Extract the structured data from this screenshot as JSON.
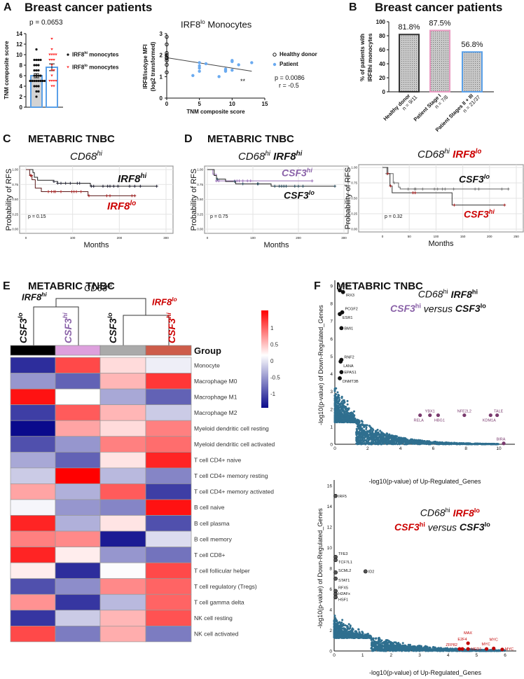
{
  "panels": {
    "A": {
      "letter": "A",
      "title": "Breast cancer patients",
      "pvalue": "p = 0.0653",
      "legend": [
        {
          "base": "IRF8",
          "sup": "hi",
          "rest": " monocytes"
        },
        {
          "base": "IRF8",
          "sup": "lo",
          "rest": " monocytes"
        }
      ],
      "scatter_title": {
        "base": "IRF8",
        "sup": "lo",
        "rest": " Monocytes"
      },
      "scatter_legend": [
        "Healthy donor",
        "Patient"
      ],
      "scatter_p": "p = 0.0086",
      "scatter_r": "r = -0.5",
      "stars": "**"
    },
    "B": {
      "letter": "B",
      "title": "Breast cancer patients"
    },
    "C": {
      "letter": "C",
      "title": "METABRIC TNBC",
      "subtitle": {
        "base": "CD68",
        "sup": "hi"
      },
      "p": "p = 0.15",
      "lab_hi": {
        "base": "IRF8",
        "sup": "hi"
      },
      "lab_lo": {
        "base": "IRF8",
        "sup": "lo"
      }
    },
    "D": {
      "letter": "D",
      "title": "METABRIC TNBC",
      "left_subtitle": {
        "a": "CD68",
        "asup": "hi",
        "b": "IRF8",
        "bsup": "hi"
      },
      "left_p": "p = 0.75",
      "right_subtitle": {
        "a": "CD68",
        "asup": "hi",
        "b": "IRF8",
        "bsup": "lo"
      },
      "right_p": "p = 0.32",
      "csf3hi": {
        "base": "CSF3",
        "sup": "hi"
      },
      "csf3lo": {
        "base": "CSF3",
        "sup": "lo"
      }
    },
    "E": {
      "letter": "E",
      "title": "METABRIC TNBC",
      "cd68": {
        "base": "CD68",
        "sup": "hi"
      },
      "irf8hi": {
        "base": "IRF8",
        "sup": "hi"
      },
      "irf8lo": {
        "base": "IRF8",
        "sup": "lo"
      },
      "group": "Group"
    },
    "F": {
      "letter": "F",
      "title": "METABRIC TNBC",
      "top_title": {
        "a": "CD68",
        "asup": "hi",
        "b": "IRF8",
        "bsup": "hi",
        "c": "CSF3",
        "csup": "hi",
        "vs": " versus ",
        "d": "CSF3",
        "dsup": "lo"
      },
      "bottom_title": {
        "a": "CD68",
        "asup": "hi",
        "b": "IRF8",
        "bsup": "lo",
        "c": "CSF3",
        "csup": "hi",
        "vs": " versus ",
        "d": "CSF3",
        "dsup": "lo"
      }
    }
  },
  "colors": {
    "red": "#cc0000",
    "purple": "#8a62a8",
    "blue": "#5aa0e8",
    "pink": "#e89ac0",
    "cloud": "#2f6f8f"
  },
  "chart_data": [
    {
      "id": "A_bar",
      "type": "bar",
      "ylabel": "TNM composite score",
      "ylim": [
        0,
        14
      ],
      "yticks": [
        0,
        2,
        4,
        6,
        8,
        10,
        12,
        14
      ],
      "series": [
        {
          "name": "IRF8hi monocytes",
          "mean": 6.0,
          "sem": 0.4,
          "points": [
            11,
            9,
            9,
            9,
            9,
            8,
            8,
            8,
            7,
            7,
            7,
            6,
            6,
            6,
            6,
            5,
            5,
            5,
            5,
            5,
            5,
            5,
            5,
            4,
            4,
            4,
            3,
            3,
            2
          ]
        },
        {
          "name": "IRF8lo monocytes",
          "mean": 7.6,
          "sem": 0.65,
          "points": [
            13,
            11,
            10,
            10,
            10,
            10,
            9,
            9,
            9,
            8,
            7,
            7,
            6,
            5,
            5,
            5,
            5,
            4,
            4
          ]
        }
      ]
    },
    {
      "id": "A_scatter",
      "type": "scatter",
      "xlabel": "TNM composite score",
      "ylabel": "IRF8/isotype MFI",
      "ylabel2": "(log2 transformed)",
      "xlim": [
        0,
        15
      ],
      "ylim": [
        0,
        3
      ],
      "xticks": [
        0,
        5,
        10,
        15
      ],
      "yticks": [
        0,
        1,
        2,
        3
      ],
      "healthy": [
        [
          0,
          2.85
        ],
        [
          0,
          2.5
        ],
        [
          0,
          2.1
        ],
        [
          0,
          2.0
        ],
        [
          0,
          1.9
        ],
        [
          0,
          1.85
        ],
        [
          0,
          1.75
        ],
        [
          0,
          1.55
        ],
        [
          0,
          1.2
        ]
      ],
      "patient": [
        [
          4,
          1.05
        ],
        [
          5,
          1.65
        ],
        [
          5,
          1.5
        ],
        [
          5,
          1.4
        ],
        [
          5,
          1.25
        ],
        [
          6,
          1.6
        ],
        [
          8,
          1.0
        ],
        [
          9,
          1.35
        ],
        [
          9,
          1.3
        ],
        [
          9,
          1.25
        ],
        [
          10,
          1.75
        ],
        [
          10,
          1.7
        ],
        [
          10,
          1.3
        ],
        [
          11,
          1.55
        ],
        [
          13,
          1.65
        ]
      ],
      "fit": [
        [
          0,
          1.88
        ],
        [
          13,
          1.25
        ]
      ]
    },
    {
      "id": "B_bar",
      "type": "bar",
      "ylabel": "% of patients with",
      "ylabel2": "IRF8hi monocytes",
      "ylim": [
        0,
        100
      ],
      "yticks": [
        0,
        20,
        40,
        60,
        80,
        100
      ],
      "categories": [
        "Healthy donor",
        "Patient Stage I",
        "Patient Stages II + III"
      ],
      "n": [
        "n = 9/11",
        "n = 7/8",
        "n = 21/37"
      ],
      "values": [
        81.8,
        87.5,
        56.8
      ],
      "labels": [
        "81.8%",
        "87.5%",
        "56.8%"
      ]
    },
    {
      "id": "C_km",
      "type": "line",
      "xlabel": "Months",
      "ylabel": "Probability of RFS",
      "xlim": [
        0,
        300
      ],
      "xticks": [
        "0",
        "100",
        "200",
        "300"
      ],
      "yticks": [
        "0.00",
        "0.25",
        "0.50",
        "0.75",
        "1.00"
      ],
      "series": [
        {
          "name": "IRF8hi",
          "steps": [
            [
              0,
              1
            ],
            [
              15,
              0.95
            ],
            [
              18,
              0.87
            ],
            [
              25,
              0.82
            ],
            [
              60,
              0.8
            ],
            [
              68,
              0.77
            ],
            [
              138,
              0.72
            ]
          ],
          "end": 280,
          "censor": [
            60,
            68,
            75,
            85,
            95,
            110,
            115,
            140,
            145,
            165,
            175,
            180,
            188,
            197,
            222,
            233,
            245,
            280
          ]
        },
        {
          "name": "IRF8lo",
          "steps": [
            [
              0,
              1
            ],
            [
              8,
              0.9
            ],
            [
              13,
              0.83
            ],
            [
              20,
              0.69
            ],
            [
              33,
              0.63
            ],
            [
              133,
              0.56
            ]
          ],
          "end": 235,
          "censor": [
            10,
            12,
            48,
            55,
            60,
            63,
            75,
            98,
            103,
            108,
            118,
            135,
            173,
            180,
            227,
            233
          ]
        }
      ]
    },
    {
      "id": "D_left_km",
      "type": "line",
      "xlabel": "Months",
      "ylabel": "Probability of RFS",
      "xlim": [
        0,
        300
      ],
      "xticks": [
        "0",
        "100",
        "200",
        "300"
      ],
      "yticks": [
        "0.00",
        "0.25",
        "0.50",
        "0.75",
        "1.00"
      ],
      "series": [
        {
          "name": "CSF3hi",
          "steps": [
            [
              0,
              1
            ],
            [
              12,
              0.92
            ],
            [
              20,
              0.81
            ]
          ],
          "end": 230,
          "censor": [
            20,
            25,
            60,
            65,
            70,
            78,
            88,
            95,
            230
          ]
        },
        {
          "name": "CSF3lo",
          "steps": [
            [
              0,
              1
            ],
            [
              15,
              0.9
            ],
            [
              20,
              0.84
            ],
            [
              40,
              0.8
            ],
            [
              62,
              0.76
            ],
            [
              140,
              0.72
            ]
          ],
          "end": 280,
          "censor": [
            22,
            60,
            78,
            110,
            112,
            148,
            158,
            163,
            168,
            173,
            192,
            200,
            210,
            280
          ]
        }
      ]
    },
    {
      "id": "D_right_km",
      "type": "line",
      "xlabel": "Months",
      "ylabel": "Probability of RFS",
      "xlim": [
        0,
        250
      ],
      "xticks": [
        "0",
        "50",
        "100",
        "150",
        "200",
        "250"
      ],
      "yticks": [
        "0.00",
        "0.25",
        "0.50",
        "0.75",
        "1.00"
      ],
      "series": [
        {
          "name": "CSF3lo",
          "steps": [
            [
              0,
              1
            ],
            [
              8,
              0.9
            ],
            [
              20,
              0.75
            ],
            [
              30,
              0.68
            ],
            [
              33,
              0.65
            ]
          ],
          "end": 235,
          "censor": [
            8,
            22,
            48,
            60,
            62,
            75,
            97,
            103,
            112,
            117,
            133,
            173,
            180,
            223,
            235
          ]
        },
        {
          "name": "CSF3hi",
          "steps": [
            [
              0,
              1
            ],
            [
              10,
              0.9
            ],
            [
              14,
              0.7
            ],
            [
              18,
              0.59
            ],
            [
              130,
              0.39
            ]
          ],
          "end": 228,
          "censor": [
            10,
            15,
            57,
            61,
            134,
            228
          ]
        }
      ]
    },
    {
      "id": "E_heatmap",
      "type": "heatmap",
      "columns": [
        {
          "base": "CSF3",
          "sup": "lo"
        },
        {
          "base": "CSF3",
          "sup": "hi"
        },
        {
          "base": "CSF3",
          "sup": "lo"
        },
        {
          "base": "CSF3",
          "sup": "hi"
        }
      ],
      "group_colors": [
        "#000000",
        "#dda0dd",
        "#aaaaaa",
        "#cd5c4a"
      ],
      "scale_ticks": [
        "1",
        "0.5",
        "0",
        "-0.5",
        "-1"
      ],
      "scale_values": [
        1,
        0.5,
        0,
        -0.5,
        -1
      ],
      "rows": [
        "Monocyte",
        "Macrophage M0",
        "Macrophage M1",
        "Macrophage M2",
        "Myeloid dendritic cell resting",
        "Myeloid dendritic cell activated",
        "T cell CD4+ naive",
        "T cell CD4+ memory resting",
        "T cell CD4+ memory activated",
        "B cell naive",
        "B cell plasma",
        "B cell memory",
        "T cell CD8+",
        "T cell follicular helper",
        "T cell regulatory (Tregs)",
        "T cell gamma delta",
        "NK cell resting",
        "NK cell activated"
      ],
      "values": [
        [
          -1.2,
          1.0,
          0.2,
          -0.1
        ],
        [
          -0.6,
          -0.9,
          0.4,
          1.1
        ],
        [
          1.3,
          0,
          -0.5,
          -0.9
        ],
        [
          -1.1,
          0.9,
          0.4,
          -0.3
        ],
        [
          -1.4,
          0.5,
          0.2,
          0.7
        ],
        [
          -1.0,
          -0.6,
          0.7,
          0.8
        ],
        [
          -0.5,
          -0.9,
          0.15,
          1.2
        ],
        [
          -0.3,
          1.4,
          -0.4,
          -0.7
        ],
        [
          0.5,
          -0.45,
          0.9,
          -1.1
        ],
        [
          -0.05,
          -0.6,
          -0.7,
          1.3
        ],
        [
          1.2,
          -0.45,
          0.15,
          -1.0
        ],
        [
          0.7,
          0.65,
          -1.3,
          -0.2
        ],
        [
          1.2,
          0.1,
          -0.6,
          -0.8
        ],
        [
          0.1,
          -1.2,
          -0.02,
          1.0
        ],
        [
          -1.0,
          -0.65,
          0.65,
          0.85
        ],
        [
          0.6,
          -1.15,
          -0.4,
          0.85
        ],
        [
          -1.15,
          -0.3,
          0.4,
          0.95
        ],
        [
          1.0,
          -0.75,
          0.45,
          -0.75
        ]
      ]
    },
    {
      "id": "F_top_volcano",
      "type": "scatter",
      "xlabel": "-log10(p-value) of Up-Regulated_Genes",
      "ylabel": "-log10(p-value) of Down-Regulated_Genes",
      "xlim": [
        0,
        10
      ],
      "ylim": [
        0,
        9
      ],
      "xticks": [
        0,
        2,
        4,
        6,
        8,
        10
      ],
      "yticks": [
        0,
        1,
        2,
        3,
        4,
        5,
        6,
        7,
        8,
        9
      ],
      "down": [
        {
          "gene": "SUZ12",
          "x": 0.3,
          "y": 8.75
        },
        {
          "gene": "IRX3",
          "x": 0.5,
          "y": 8.65
        },
        {
          "gene": "PCGF2",
          "x": 0.45,
          "y": 7.5
        },
        {
          "gene": "ESR1",
          "x": 0.3,
          "y": 7.4
        },
        {
          "gene": "BMI1",
          "x": 0.4,
          "y": 6.6
        },
        {
          "gene": "RNF2",
          "x": 0.4,
          "y": 4.8
        },
        {
          "gene": "LANA",
          "x": 0.35,
          "y": 4.7
        },
        {
          "gene": "EPAS1",
          "x": 0.4,
          "y": 4.1
        },
        {
          "gene": "DNMT3B",
          "x": 0.3,
          "y": 3.75
        }
      ],
      "up": [
        {
          "gene": "RELA",
          "x": 5.2,
          "y": 1.65
        },
        {
          "gene": "YBX1",
          "x": 5.8,
          "y": 1.65
        },
        {
          "gene": "HBG1",
          "x": 6.3,
          "y": 1.65
        },
        {
          "gene": "NFE2L2",
          "x": 7.9,
          "y": 1.65
        },
        {
          "gene": "KDM1A",
          "x": 9.5,
          "y": 1.65
        },
        {
          "gene": "TALE",
          "x": 9.9,
          "y": 1.65
        },
        {
          "gene": "BIRA",
          "x": 10.3,
          "y": 0.05
        }
      ]
    },
    {
      "id": "F_bottom_volcano",
      "type": "scatter",
      "xlabel": "-log10(p-value) of Up-Regulated_Genes",
      "ylabel": "-log10(p-value) of Down-Regulated_Genes",
      "xlim": [
        0,
        6
      ],
      "ylim": [
        0,
        16
      ],
      "xticks": [
        0,
        1,
        2,
        3,
        4,
        5,
        6
      ],
      "yticks": [
        0,
        2,
        4,
        6,
        8,
        10,
        12,
        14,
        16
      ],
      "down": [
        {
          "gene": "IRF5",
          "x": 0.05,
          "y": 15
        },
        {
          "gene": "TFE3",
          "x": 0.05,
          "y": 9.1
        },
        {
          "gene": "TCF7L1",
          "x": 0.05,
          "y": 8.8
        },
        {
          "gene": "SCML2",
          "x": 0.05,
          "y": 7.6
        },
        {
          "gene": "STAT1",
          "x": 0.05,
          "y": 7.0
        },
        {
          "gene": "RFX5",
          "x": 0.05,
          "y": 5.8
        },
        {
          "gene": "H2AFx",
          "x": 0.05,
          "y": 5.5
        },
        {
          "gene": "HSF1",
          "x": 0.05,
          "y": 5.2
        },
        {
          "gene": "ID2",
          "x": 1.1,
          "y": 7.7
        }
      ],
      "up": [
        {
          "gene": "ZFP82",
          "x": 4.4,
          "y": 0.2
        },
        {
          "gene": "E2F4",
          "x": 4.5,
          "y": 0.2
        },
        {
          "gene": "MAX",
          "x": 4.7,
          "y": 0.75
        },
        {
          "gene": "MED1",
          "x": 4.7,
          "y": 0.2
        },
        {
          "gene": "MYC",
          "x": 5.35,
          "y": 0.2
        },
        {
          "gene": "MYC",
          "x": 5.6,
          "y": 0.25
        },
        {
          "gene": "MYC",
          "x": 5.9,
          "y": 0.15
        }
      ]
    }
  ]
}
